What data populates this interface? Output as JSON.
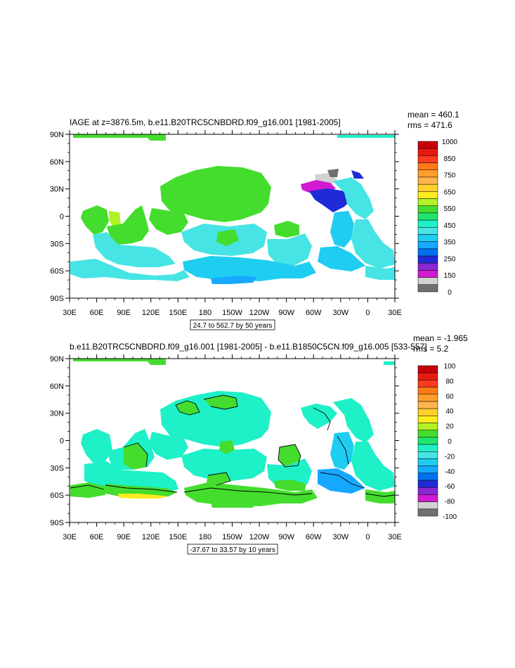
{
  "panels": [
    {
      "title": "IAGE at z=3876.5m, b.e11.B20TRC5CNBDRD.f09_g16.001 [1981-2005]",
      "stats": {
        "mean": "mean = 460.1",
        "rms": "rms = 471.6"
      },
      "y_ticks": [
        "90N",
        "60N",
        "30N",
        "0",
        "30S",
        "60S",
        "90S"
      ],
      "x_ticks": [
        "30E",
        "60E",
        "90E",
        "120E",
        "150E",
        "180",
        "150W",
        "120W",
        "90W",
        "60W",
        "30W",
        "0",
        "30E"
      ],
      "contour_info": "24.7 to 562.7 by 50 years",
      "colorbar_labels": [
        "1000",
        "850",
        "750",
        "650",
        "550",
        "450",
        "350",
        "250",
        "150",
        "0"
      ],
      "colorbar_colors": [
        "#c8000a",
        "#e81a10",
        "#ff3a1f",
        "#ff7a17",
        "#ff9e2c",
        "#ffb44c",
        "#ffd12d",
        "#ffec1e",
        "#b1f227",
        "#44dd2e",
        "#1fe56f",
        "#1ef0c8",
        "#46e4e4",
        "#1fcdf0",
        "#16a8ff",
        "#0070f0",
        "#1e2bd6",
        "#8a27d6",
        "#d21ad2",
        "#d2d2d2",
        "#707070"
      ]
    },
    {
      "title": "b.e11.B20TRC5CNBDRD.f09_g16.001 [1981-2005] - b.e11.B1850C5CN.f09_g16.005 [533-557]",
      "stats": {
        "mean": "mean = -1.965",
        "rms": "rms = 5.2"
      },
      "y_ticks": [
        "90N",
        "60N",
        "30N",
        "0",
        "30S",
        "60S",
        "90S"
      ],
      "x_ticks": [
        "30E",
        "60E",
        "90E",
        "120E",
        "150E",
        "180",
        "150W",
        "120W",
        "90W",
        "60W",
        "30W",
        "0",
        "30E"
      ],
      "contour_info": "-37.67 to 33.57 by 10 years",
      "colorbar_labels": [
        "100",
        "80",
        "60",
        "40",
        "20",
        "0",
        "-20",
        "-40",
        "-60",
        "-80",
        "-100"
      ],
      "colorbar_colors": [
        "#c8000a",
        "#e81a10",
        "#ff3a1f",
        "#ff7a17",
        "#ff9e2c",
        "#ffb44c",
        "#ffd12d",
        "#ffec1e",
        "#b1f227",
        "#44dd2e",
        "#1fe56f",
        "#1ef0c8",
        "#46e4e4",
        "#1fcdf0",
        "#16a8ff",
        "#0070f0",
        "#1e2bd6",
        "#8a27d6",
        "#d21ad2",
        "#d2d2d2",
        "#707070"
      ]
    }
  ]
}
